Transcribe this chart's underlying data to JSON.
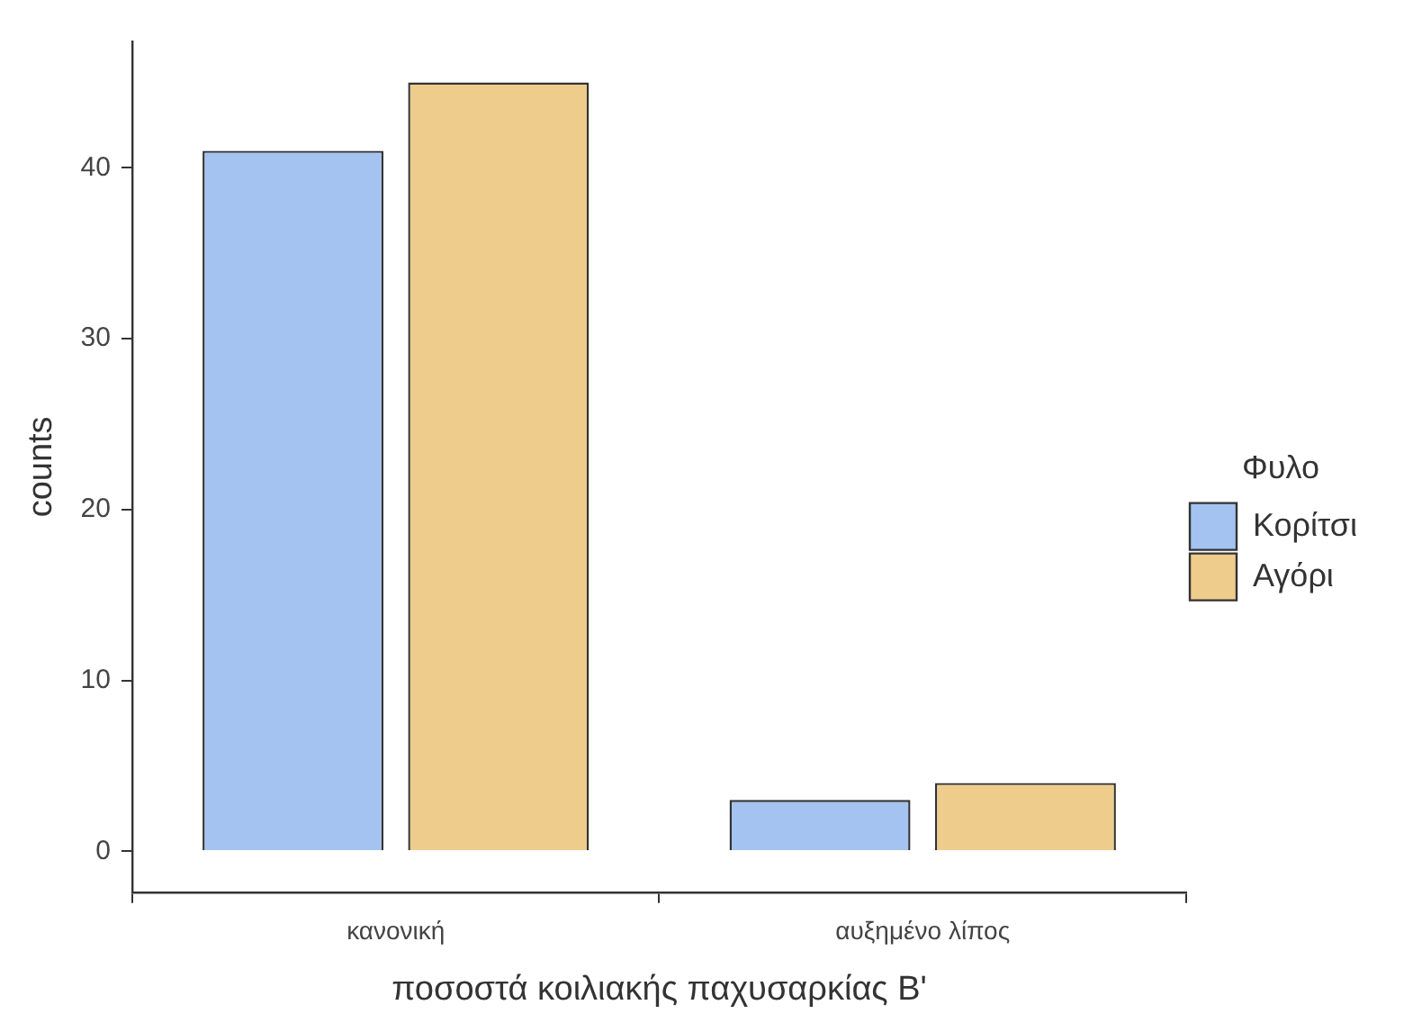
{
  "chart_data": {
    "type": "bar",
    "xlabel": "ποσοστά κοιλιακής παχυσαρκίας Β'",
    "ylabel": "counts",
    "legend_title": "Φυλο",
    "categories": [
      "κανονική",
      "αυξημένο λίπος"
    ],
    "series": [
      {
        "name": "Κορίτσι",
        "color": "#a4c3f0",
        "values": [
          41,
          3
        ]
      },
      {
        "name": "Αγόρι",
        "color": "#eecc8c",
        "values": [
          45,
          4
        ]
      }
    ],
    "ylim": [
      -2.4,
      47.4
    ],
    "yticks": [
      0,
      10,
      20,
      30,
      40
    ],
    "grid": false,
    "legend": "right"
  }
}
